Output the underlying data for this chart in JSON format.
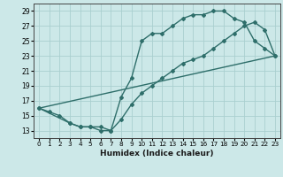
{
  "xlabel": "Humidex (Indice chaleur)",
  "bg_color": "#cce8e8",
  "line_color": "#2e6e6a",
  "grid_color": "#aacfcf",
  "xlim": [
    -0.5,
    23.5
  ],
  "ylim": [
    12.0,
    30.0
  ],
  "xticks": [
    0,
    1,
    2,
    3,
    4,
    5,
    6,
    7,
    8,
    9,
    10,
    11,
    12,
    13,
    14,
    15,
    16,
    17,
    18,
    19,
    20,
    21,
    22,
    23
  ],
  "yticks": [
    13,
    15,
    17,
    19,
    21,
    23,
    25,
    27,
    29
  ],
  "curve1_x": [
    0,
    1,
    2,
    3,
    4,
    5,
    6,
    7,
    8,
    9,
    10,
    11,
    12,
    13,
    14,
    15,
    16,
    17,
    18,
    19,
    20,
    21,
    22,
    23
  ],
  "curve1_y": [
    16,
    15.5,
    15,
    14,
    13.5,
    13.5,
    13,
    13,
    17.5,
    20,
    25,
    26,
    26,
    27,
    28,
    28.5,
    28.5,
    29,
    29,
    28,
    27.5,
    25,
    24,
    23
  ],
  "curve2_x": [
    0,
    3,
    4,
    5,
    6,
    7,
    8,
    9,
    10,
    11,
    12,
    13,
    14,
    15,
    16,
    17,
    18,
    19,
    20,
    21,
    22,
    23
  ],
  "curve2_y": [
    16,
    14,
    13.5,
    13.5,
    13.5,
    13,
    14.5,
    16.5,
    18,
    19,
    20,
    21,
    22,
    22.5,
    23,
    24,
    25,
    26,
    27,
    27.5,
    26.5,
    23
  ],
  "curve3_x": [
    0,
    23
  ],
  "curve3_y": [
    16,
    23
  ]
}
